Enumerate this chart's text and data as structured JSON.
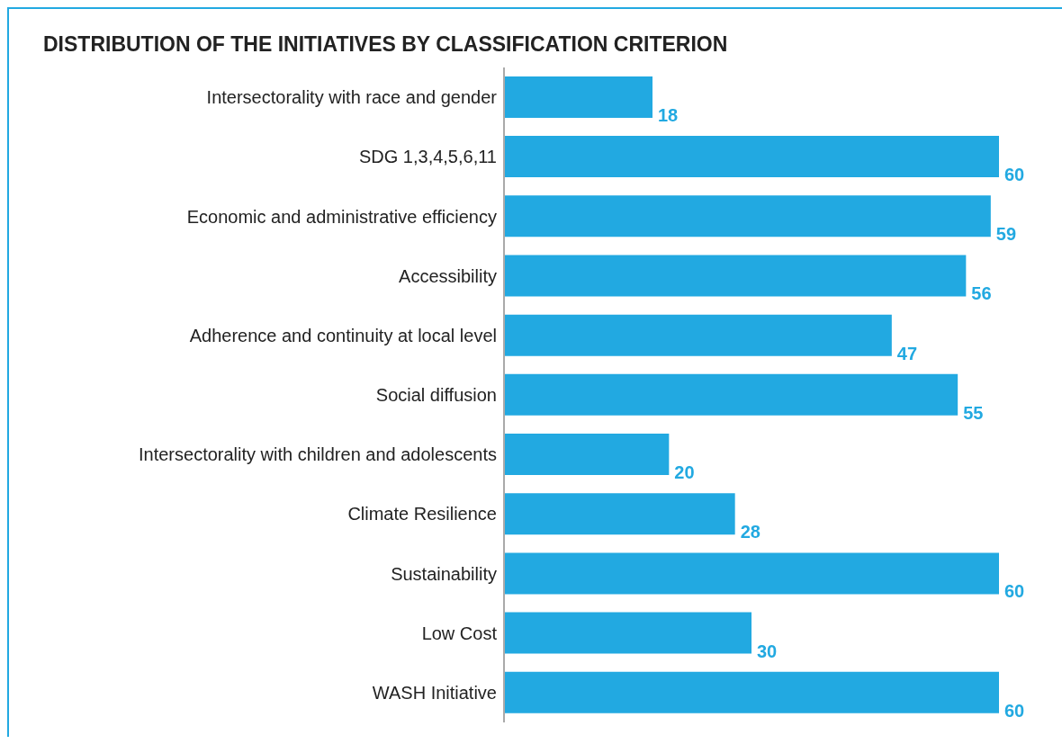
{
  "chart_data": {
    "type": "bar",
    "orientation": "horizontal",
    "title": "DISTRIBUTION OF THE INITIATIVES BY CLASSIFICATION CRITERION",
    "categories": [
      "Intersectorality with race and gender",
      "SDG 1,3,4,5,6,11",
      "Economic and administrative efficiency",
      "Accessibility",
      "Adherence and continuity at local level",
      "Social diffusion",
      "Intersectorality with children and adolescents",
      "Climate Resilience",
      "Sustainability",
      "Low Cost",
      "WASH Initiative"
    ],
    "values": [
      18,
      60,
      59,
      56,
      47,
      55,
      20,
      28,
      60,
      30,
      60
    ],
    "color": "#22a9e1",
    "data_labels": true,
    "grid": false,
    "legend": false
  }
}
